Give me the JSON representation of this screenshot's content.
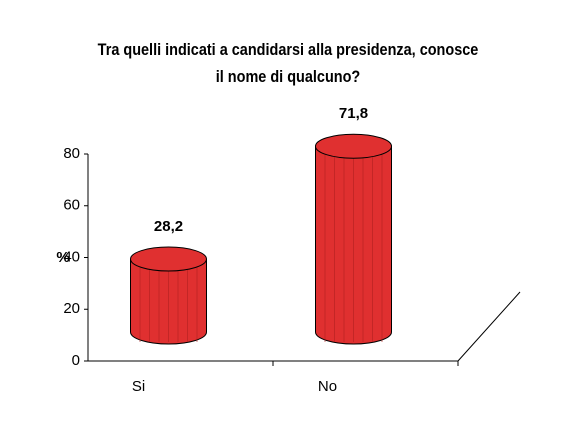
{
  "chart_data": {
    "type": "bar3d",
    "title": "Tra quelli indicati a candidarsi alla presidenza, conosce il nome di qualcuno?",
    "y_label": "%",
    "categories": [
      "Si",
      "No"
    ],
    "values": [
      28.2,
      71.8
    ],
    "value_labels": [
      "28,2",
      "71,8"
    ],
    "color": "#e03030",
    "ylim": [
      0,
      80
    ],
    "yticks": [
      0,
      20,
      40,
      60,
      80
    ]
  }
}
